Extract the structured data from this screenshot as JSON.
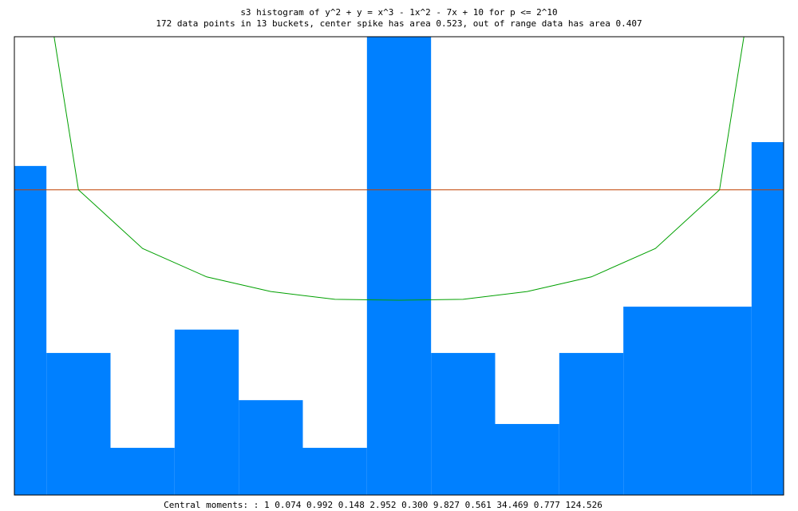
{
  "chart_data": {
    "type": "histogram",
    "title": "s3 histogram of y^2 + y = x^3 - 1x^2 - 7x + 10  for p <= 2^10",
    "subtitle": "172 data points in 13 buckets, center spike has area 0.523, out of range data has area 0.407",
    "footer": "Central moments: : 1   0.074   0.992   0.148   2.952   0.300   9.827   0.561   34.469   0.777   124.526",
    "bins": [
      0,
      0.5,
      1.5,
      2.5,
      3.5,
      4.5,
      5.5,
      6.5,
      7.5,
      8.5,
      9.5,
      10.5,
      11.5,
      12
    ],
    "values": [
      0.718,
      0.31,
      0.103,
      0.361,
      0.207,
      0.103,
      1.0,
      0.31,
      0.155,
      0.31,
      0.411,
      0.411,
      0.77
    ],
    "color": "#0080ff",
    "xlim": [
      0,
      12
    ],
    "ylim": [
      0,
      1
    ],
    "reference_line": {
      "value": 0.666,
      "color": "#c04000"
    },
    "curve": {
      "color": "#00a000",
      "x": [
        0.62,
        1,
        2,
        3,
        4,
        5,
        6,
        7,
        8,
        9,
        10,
        11,
        11.38
      ],
      "values": [
        1.0,
        0.666,
        0.538,
        0.476,
        0.444,
        0.427,
        0.425,
        0.427,
        0.444,
        0.476,
        0.538,
        0.666,
        1.0
      ]
    }
  }
}
